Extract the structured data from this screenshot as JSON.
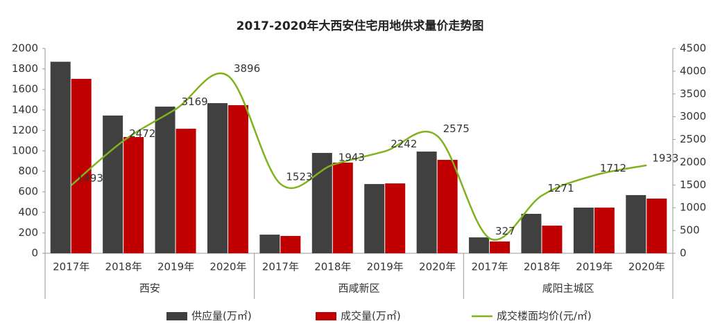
{
  "chart_data": {
    "type": "bar-line",
    "title": "2017-2020年大西安住宅用地供求量价走势图",
    "categories": [
      "2017年",
      "2018年",
      "2019年",
      "2020年",
      "2017年",
      "2018年",
      "2019年",
      "2020年",
      "2017年",
      "2018年",
      "2019年",
      "2020年"
    ],
    "category_groups": [
      "西安",
      "西咸新区",
      "咸阳主城区"
    ],
    "series": [
      {
        "name": "供应量(万㎡)",
        "color": "#404040",
        "type": "bar",
        "values": [
          1870,
          1345,
          1432,
          1466,
          182,
          980,
          676,
          993,
          155,
          385,
          446,
          568
        ]
      },
      {
        "name": "成交量(万㎡)",
        "color": "#c00000",
        "type": "bar",
        "values": [
          1703,
          1135,
          1216,
          1446,
          169,
          885,
          682,
          912,
          115,
          270,
          446,
          534
        ]
      },
      {
        "name": "成交楼面均价(元/㎡)",
        "color": "#7fb21c",
        "type": "line",
        "axis": "y2",
        "values": [
          1493,
          2472,
          3169,
          3896,
          1523,
          1943,
          2242,
          2575,
          327,
          1271,
          1712,
          1933
        ]
      }
    ],
    "ylim": [
      0,
      2000
    ],
    "yticks": [
      0,
      200,
      400,
      600,
      800,
      1000,
      1200,
      1400,
      1600,
      1800,
      2000
    ],
    "y2lim": [
      0,
      4500
    ],
    "y2ticks": [
      0,
      500,
      1000,
      1500,
      2000,
      2500,
      3000,
      3500,
      4000,
      4500
    ],
    "legend": "bottom"
  }
}
